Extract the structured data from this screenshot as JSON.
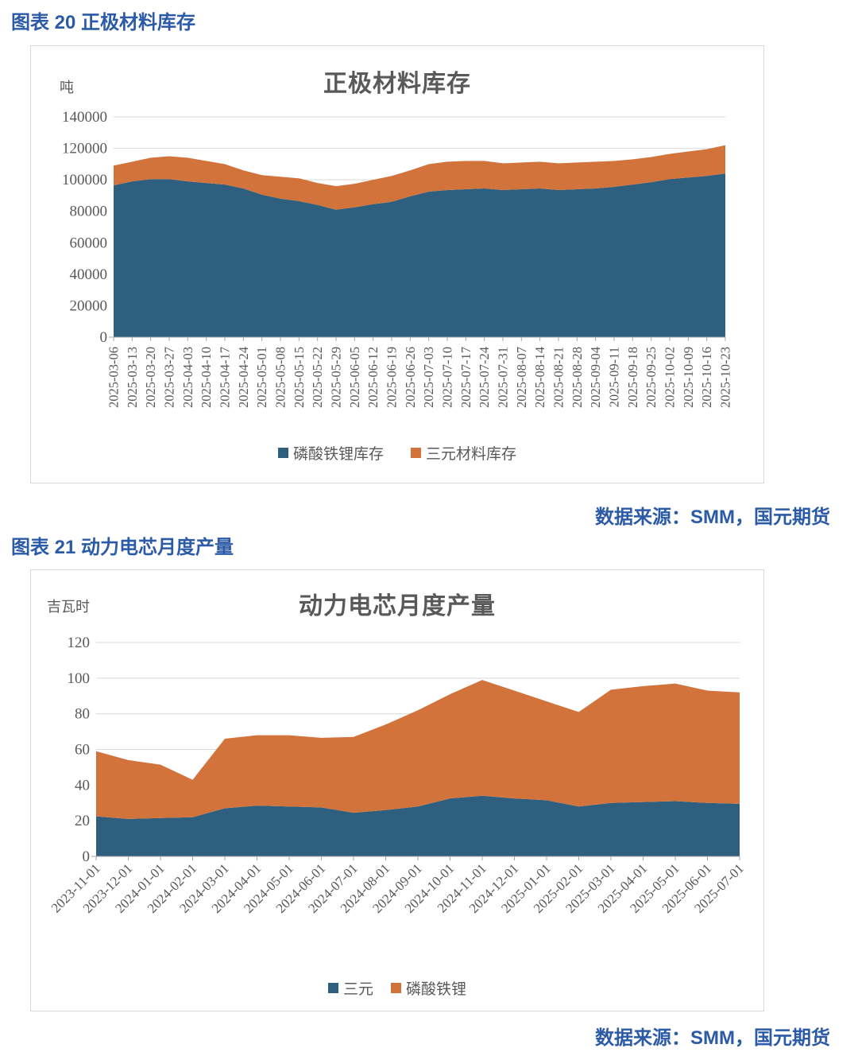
{
  "headings": {
    "fig20": "图表 20 正极材料库存",
    "fig21": "图表 21 动力电芯月度产量"
  },
  "sources": {
    "fig20": "数据来源：SMM，国元期货",
    "fig21": "数据来源：SMM，国元期货"
  },
  "colors": {
    "heading_blue": "#2B5AA6",
    "title_gray": "#595959",
    "grid": "#D9D9D9",
    "axis": "#A6A6A6",
    "series_blue": "#2E5F7E",
    "series_orange": "#D2733B"
  },
  "chart_data": [
    {
      "type": "area",
      "stacked": true,
      "title": "正极材料库存",
      "unit_label": "吨",
      "xlabel": "",
      "ylabel": "吨",
      "ylim": [
        0,
        140000
      ],
      "ytick_step": 20000,
      "ytick_labels": [
        "0",
        "20000",
        "40000",
        "60000",
        "80000",
        "100000",
        "120000",
        "140000"
      ],
      "grid": true,
      "legend_position": "bottom",
      "categories": [
        "2025-03-06",
        "2025-03-13",
        "2025-03-20",
        "2025-03-27",
        "2025-04-03",
        "2025-04-10",
        "2025-04-17",
        "2025-04-24",
        "2025-05-01",
        "2025-05-08",
        "2025-05-15",
        "2025-05-22",
        "2025-05-29",
        "2025-06-05",
        "2025-06-12",
        "2025-06-19",
        "2025-06-26",
        "2025-07-03",
        "2025-07-10",
        "2025-07-17",
        "2025-07-24",
        "2025-07-31",
        "2025-08-07",
        "2025-08-14",
        "2025-08-21",
        "2025-08-28",
        "2025-09-04",
        "2025-09-11",
        "2025-09-18",
        "2025-09-25",
        "2025-10-02",
        "2025-10-09",
        "2025-10-16",
        "2025-10-23"
      ],
      "series": [
        {
          "name": "磷酸铁锂库存",
          "color": "#2E5F7E",
          "values": [
            96500,
            99000,
            100500,
            100500,
            99000,
            98000,
            97000,
            94500,
            90500,
            88000,
            86500,
            84000,
            81000,
            82500,
            84500,
            86000,
            89500,
            92500,
            93500,
            94000,
            94500,
            93500,
            94000,
            94500,
            93500,
            94000,
            94500,
            95500,
            97000,
            98500,
            100500,
            101500,
            102500,
            104000
          ]
        },
        {
          "name": "三元材料库存",
          "color": "#D2733B",
          "values": [
            12500,
            12500,
            13500,
            14500,
            15000,
            14000,
            13000,
            11500,
            12500,
            14000,
            14500,
            14000,
            15000,
            15000,
            15500,
            16500,
            16500,
            17500,
            18000,
            18000,
            17500,
            17000,
            17000,
            17000,
            17000,
            17000,
            17000,
            16500,
            16000,
            16000,
            16000,
            16500,
            17000,
            18000
          ]
        }
      ]
    },
    {
      "type": "area",
      "stacked": true,
      "title": "动力电芯月度产量",
      "unit_label": "吉瓦时",
      "xlabel": "",
      "ylabel": "吉瓦时",
      "ylim": [
        0,
        120
      ],
      "ytick_step": 20,
      "ytick_labels": [
        "0",
        "20",
        "40",
        "60",
        "80",
        "100",
        "120"
      ],
      "grid": true,
      "legend_position": "bottom",
      "categories": [
        "2023-11-01",
        "2023-12-01",
        "2024-01-01",
        "2024-02-01",
        "2024-03-01",
        "2024-04-01",
        "2024-05-01",
        "2024-06-01",
        "2024-07-01",
        "2024-08-01",
        "2024-09-01",
        "2024-10-01",
        "2024-11-01",
        "2024-12-01",
        "2025-01-01",
        "2025-02-01",
        "2025-03-01",
        "2025-04-01",
        "2025-05-01",
        "2025-06-01",
        "2025-07-01"
      ],
      "series": [
        {
          "name": "三元",
          "color": "#2E5F7E",
          "values": [
            22.5,
            21,
            21.5,
            22,
            27,
            28.5,
            28,
            27.5,
            24.5,
            26,
            28,
            32.5,
            34,
            32.5,
            31.5,
            28,
            30,
            30.5,
            31,
            30,
            29.5
          ]
        },
        {
          "name": "磷酸铁锂",
          "color": "#D2733B",
          "values": [
            36.5,
            33,
            30,
            21,
            39,
            39.5,
            40,
            39,
            42.5,
            48,
            54,
            58.5,
            65,
            60.5,
            55.5,
            53,
            63.5,
            65,
            66,
            63,
            62.5
          ]
        }
      ]
    }
  ]
}
